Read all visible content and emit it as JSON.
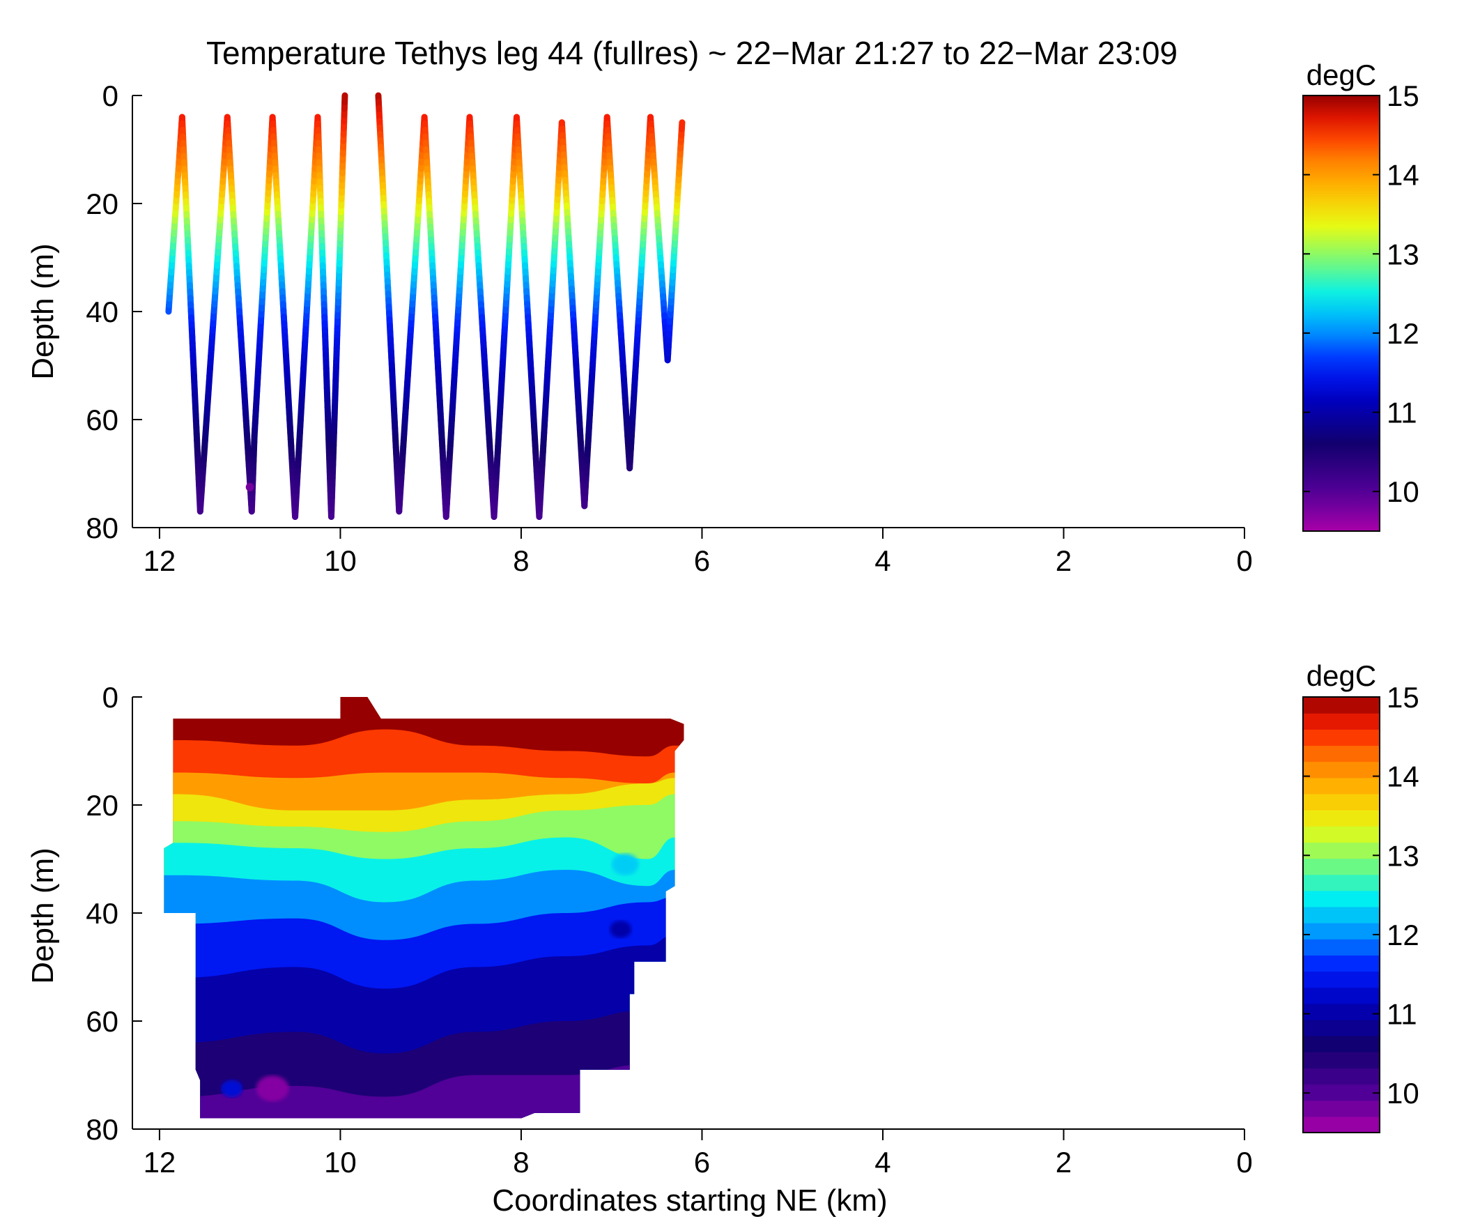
{
  "figure": {
    "title": "Temperature Tethys leg 44 (fullres) ~ 22−Mar 21:27 to 22−Mar 23:09",
    "xlabel": "Coordinates starting NE (km)"
  },
  "chart_data": [
    {
      "type": "scatter",
      "name": "profile-track",
      "title": "Temperature Tethys leg 44 (fullres) ~ 22−Mar 21:27 to 22−Mar 23:09",
      "xlabel": "",
      "ylabel": "Depth (m)",
      "xlim": [
        12.3,
        0
      ],
      "ylim": [
        0,
        80
      ],
      "xticks": [
        12,
        10,
        8,
        6,
        4,
        2,
        0
      ],
      "yticks": [
        0,
        20,
        40,
        60,
        80
      ],
      "grid": false,
      "colorbar": {
        "label": "degC",
        "range": [
          9.5,
          15
        ],
        "ticks": [
          10,
          11,
          12,
          13,
          14,
          15
        ],
        "colormap": "jet",
        "continuous": true
      },
      "track_points": [
        {
          "x": 11.9,
          "y": 40
        },
        {
          "x": 11.75,
          "y": 4
        },
        {
          "x": 11.55,
          "y": 77
        },
        {
          "x": 11.25,
          "y": 4
        },
        {
          "x": 10.98,
          "y": 77
        },
        {
          "x": 10.95,
          "y": 63
        },
        {
          "x": 10.75,
          "y": 4
        },
        {
          "x": 10.5,
          "y": 78
        },
        {
          "x": 10.25,
          "y": 4
        },
        {
          "x": 10.1,
          "y": 78
        },
        {
          "x": 9.95,
          "y": 0
        },
        {
          "x": 9.58,
          "y": 0
        },
        {
          "x": 9.35,
          "y": 77
        },
        {
          "x": 9.07,
          "y": 4
        },
        {
          "x": 8.83,
          "y": 78
        },
        {
          "x": 8.57,
          "y": 4
        },
        {
          "x": 8.3,
          "y": 78
        },
        {
          "x": 8.05,
          "y": 4
        },
        {
          "x": 7.8,
          "y": 78
        },
        {
          "x": 7.55,
          "y": 5
        },
        {
          "x": 7.3,
          "y": 76
        },
        {
          "x": 7.05,
          "y": 4
        },
        {
          "x": 6.8,
          "y": 69
        },
        {
          "x": 6.57,
          "y": 4
        },
        {
          "x": 6.38,
          "y": 49
        },
        {
          "x": 6.22,
          "y": 5
        }
      ],
      "temperature_profile": [
        {
          "depth": 0,
          "temp": 14.9
        },
        {
          "depth": 5,
          "temp": 14.6
        },
        {
          "depth": 12,
          "temp": 14.2
        },
        {
          "depth": 18,
          "temp": 13.7
        },
        {
          "depth": 24,
          "temp": 13.0
        },
        {
          "depth": 30,
          "temp": 12.5
        },
        {
          "depth": 36,
          "temp": 12.0
        },
        {
          "depth": 45,
          "temp": 11.4
        },
        {
          "depth": 55,
          "temp": 11.0
        },
        {
          "depth": 65,
          "temp": 10.6
        },
        {
          "depth": 72,
          "temp": 10.3
        },
        {
          "depth": 80,
          "temp": 10.0
        }
      ],
      "anomaly_points": [
        {
          "x": 11.0,
          "y": 72.5,
          "temp": 9.8
        }
      ]
    },
    {
      "type": "heatmap",
      "name": "contoured-section",
      "title": "",
      "xlabel": "Coordinates starting NE (km)",
      "ylabel": "Depth (m)",
      "xlim": [
        12.3,
        0
      ],
      "ylim": [
        0,
        80
      ],
      "xticks": [
        12,
        10,
        8,
        6,
        4,
        2,
        0
      ],
      "yticks": [
        0,
        20,
        40,
        60,
        80
      ],
      "grid": false,
      "colorbar": {
        "label": "degC",
        "range": [
          9.5,
          15
        ],
        "ticks": [
          10,
          11,
          12,
          13,
          14,
          15
        ],
        "colormap": "jet",
        "levels": 27
      },
      "data_extent": {
        "outline": [
          [
            11.85,
            4
          ],
          [
            10.0,
            4
          ],
          [
            10.0,
            0
          ],
          [
            9.7,
            0
          ],
          [
            9.55,
            4
          ],
          [
            6.35,
            4
          ],
          [
            6.2,
            5
          ],
          [
            6.2,
            8
          ],
          [
            6.3,
            10
          ],
          [
            6.3,
            35
          ],
          [
            6.4,
            36
          ],
          [
            6.4,
            49
          ],
          [
            6.75,
            49
          ],
          [
            6.75,
            55
          ],
          [
            6.8,
            55
          ],
          [
            6.8,
            69
          ],
          [
            7.35,
            69
          ],
          [
            7.35,
            77
          ],
          [
            7.85,
            77
          ],
          [
            8.0,
            78
          ],
          [
            11.55,
            78
          ],
          [
            11.55,
            71
          ],
          [
            11.6,
            69
          ],
          [
            11.6,
            40
          ],
          [
            11.95,
            40
          ],
          [
            11.95,
            28
          ],
          [
            11.85,
            27
          ]
        ]
      },
      "isotherm_depths_m": [
        {
          "temp": 14.5,
          "x": [
            11.8,
            10.5,
            9.5,
            8.5,
            7.5,
            6.6,
            6.3
          ],
          "depth": [
            8,
            9,
            6,
            9,
            10,
            11,
            9
          ]
        },
        {
          "temp": 14.0,
          "x": [
            11.8,
            10.5,
            9.5,
            8.5,
            7.5,
            6.6,
            6.3
          ],
          "depth": [
            14,
            15,
            14,
            14,
            15,
            16,
            14
          ]
        },
        {
          "temp": 13.5,
          "x": [
            11.8,
            10.5,
            9.5,
            8.5,
            7.5,
            6.6,
            6.3
          ],
          "depth": [
            18,
            21,
            21,
            19,
            18,
            16,
            15
          ]
        },
        {
          "temp": 13.0,
          "x": [
            11.8,
            10.5,
            9.5,
            8.5,
            7.5,
            6.6,
            6.3
          ],
          "depth": [
            23,
            24,
            25,
            23,
            21,
            20,
            18
          ]
        },
        {
          "temp": 12.5,
          "x": [
            11.8,
            10.5,
            9.5,
            8.5,
            7.5,
            6.6,
            6.3
          ],
          "depth": [
            27,
            28,
            30,
            28,
            26,
            30,
            26
          ]
        },
        {
          "temp": 12.0,
          "x": [
            11.8,
            10.5,
            9.5,
            8.5,
            7.5,
            6.6,
            6.3
          ],
          "depth": [
            33,
            34,
            38,
            34,
            32,
            35,
            32
          ]
        },
        {
          "temp": 11.5,
          "x": [
            11.8,
            10.5,
            9.5,
            8.5,
            7.5,
            6.6,
            6.3
          ],
          "depth": [
            42,
            41,
            45,
            42,
            40,
            38,
            37
          ]
        },
        {
          "temp": 11.0,
          "x": [
            11.8,
            10.5,
            9.5,
            8.5,
            7.5,
            6.6,
            6.3
          ],
          "depth": [
            52,
            50,
            54,
            50,
            48,
            46,
            44
          ]
        },
        {
          "temp": 10.5,
          "x": [
            11.8,
            10.5,
            9.5,
            8.5,
            7.5,
            6.6,
            6.3
          ],
          "depth": [
            64,
            62,
            66,
            62,
            60,
            58,
            56
          ]
        },
        {
          "temp": 10.0,
          "x": [
            11.8,
            10.5,
            9.5,
            8.5,
            7.5,
            6.6,
            6.3
          ],
          "depth": [
            74,
            72,
            74,
            70,
            70,
            68,
            66
          ]
        }
      ],
      "features": [
        {
          "x": 11.2,
          "y": 72.5,
          "temp": 11.3,
          "radius_km": 0.12
        },
        {
          "x": 10.75,
          "y": 72.5,
          "temp": 9.7,
          "radius_km": 0.18
        },
        {
          "x": 6.85,
          "y": 31,
          "temp": 12.3,
          "radius_km": 0.15
        },
        {
          "x": 6.9,
          "y": 43,
          "temp": 11.0,
          "radius_km": 0.12
        }
      ]
    }
  ]
}
